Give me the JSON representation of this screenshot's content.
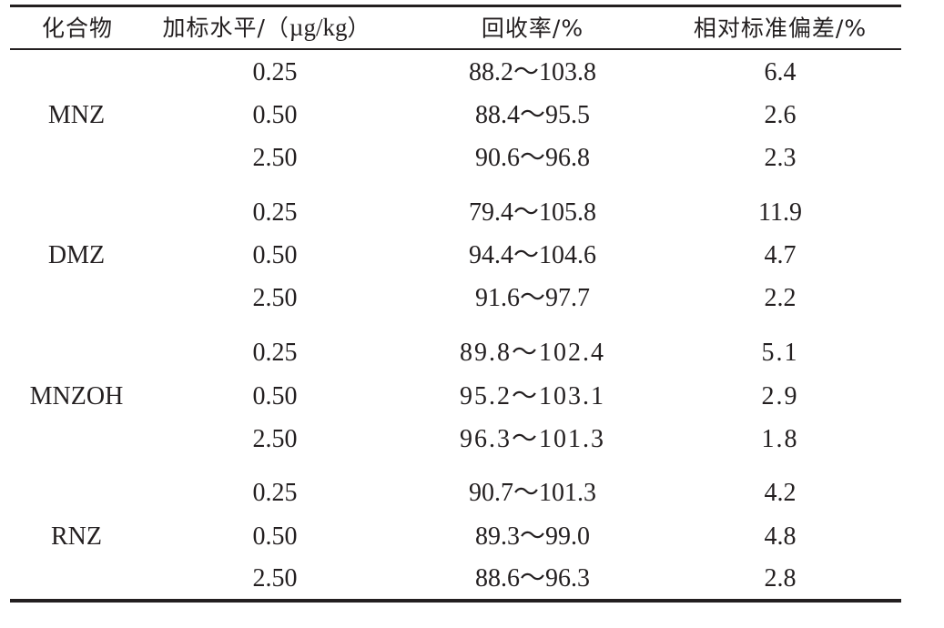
{
  "table": {
    "headers": {
      "compound": "化合物",
      "level_cn": "加标水平/（",
      "level_unit": "µg/kg",
      "level_close": "）",
      "recovery": "回收率/%",
      "rsd": "相对标准偏差/%"
    },
    "groups": [
      {
        "compound": "MNZ",
        "rows": [
          {
            "level": "0.25",
            "recovery": "88.2～103.8",
            "rsd": "6.4"
          },
          {
            "level": "0.50",
            "recovery": "88.4～95.5",
            "rsd": "2.6"
          },
          {
            "level": "2.50",
            "recovery": "90.6～96.8",
            "rsd": "2.3"
          }
        ]
      },
      {
        "compound": "DMZ",
        "rows": [
          {
            "level": "0.25",
            "recovery": "79.4～105.8",
            "rsd": "11.9"
          },
          {
            "level": "0.50",
            "recovery": "94.4～104.6",
            "rsd": "4.7"
          },
          {
            "level": "2.50",
            "recovery": "91.6～97.7",
            "rsd": "2.2"
          }
        ]
      },
      {
        "compound": "MNZOH",
        "rows": [
          {
            "level": "0.25",
            "recovery": "89.8～102.4",
            "rsd": "5.1"
          },
          {
            "level": "0.50",
            "recovery": "95.2～103.1",
            "rsd": "2.9"
          },
          {
            "level": "2.50",
            "recovery": "96.3～101.3",
            "rsd": "1.8"
          }
        ]
      },
      {
        "compound": "RNZ",
        "rows": [
          {
            "level": "0.25",
            "recovery": "90.7～101.3",
            "rsd": "4.2"
          },
          {
            "level": "0.50",
            "recovery": "89.3～99.0",
            "rsd": "4.8"
          },
          {
            "level": "2.50",
            "recovery": "88.6～96.3",
            "rsd": "2.8"
          }
        ]
      }
    ]
  }
}
